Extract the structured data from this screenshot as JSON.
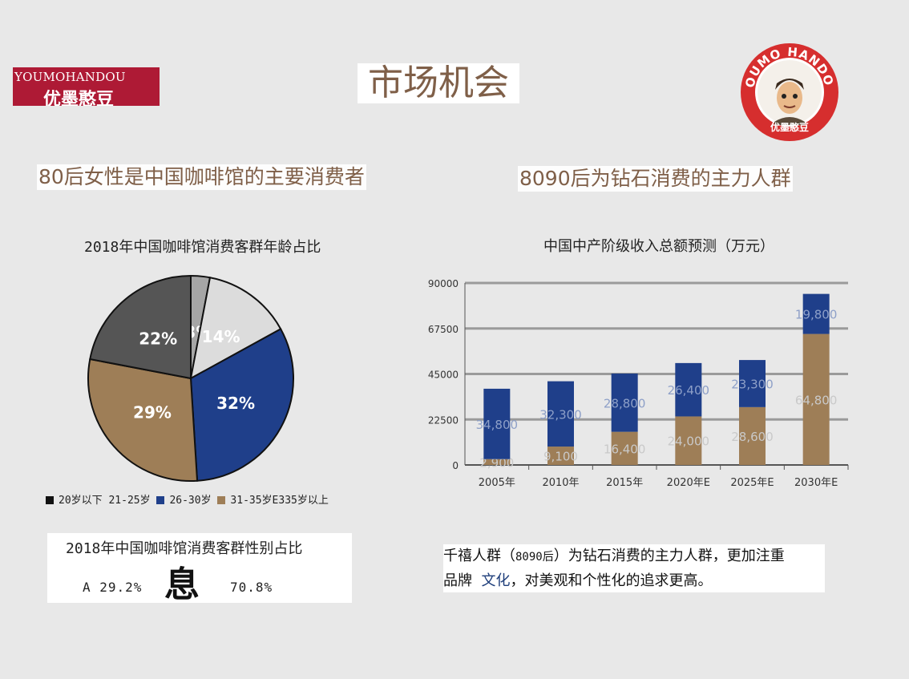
{
  "brand": {
    "en": "YOUMOHANDOU",
    "cn": "优墨憨豆"
  },
  "page_title": "市场机会",
  "logo": {
    "ring_text": "YOUMO HANDOU",
    "bottom_text": "优墨憨豆",
    "icon": "cartoon-face-logo",
    "color": "#d62e2e"
  },
  "headings": {
    "left": "80后女性是中国咖啡馆的主要消费者",
    "right": "8090后为钻石消费的主力人群"
  },
  "pie": {
    "legend_text": "20岁以下 21-25岁",
    "legend_text_2": "26-30岁",
    "legend_text_3": "31-35岁E335岁以上"
  },
  "gender": {
    "title": "2018年中国咖啡馆消费客群性别占比",
    "left": "A 29.2%",
    "mid": "息",
    "right": "70.8%"
  },
  "note": {
    "l1_a": "千禧人群（",
    "l1_b": "8090后",
    "l1_c": "）为钻石消费的主力人群，更加注重",
    "l2_a": "品牌",
    "l2_b": "文化",
    "l2_c": "，对美观和个性化的追求更高。"
  },
  "colors": {
    "brand_red": "#ae1a35",
    "title_brown": "#7f5f48",
    "navy": "#1f3f8a",
    "tan": "#9e7e57",
    "dark_gray": "#555555",
    "light_gray": "#d9d9d9",
    "mid_gray": "#a6a6a6"
  },
  "chart_data": [
    {
      "type": "pie",
      "title": "2018年中国咖啡馆消费客群年龄占比",
      "labels": [
        "20岁以下",
        "21-25岁",
        "26-30岁",
        "31-35岁",
        "35岁以上"
      ],
      "values": [
        3,
        14,
        32,
        29,
        22
      ],
      "data_labels": [
        "3%",
        "14%",
        "32%",
        "29%",
        "22%"
      ],
      "colors": [
        "#a6a6a6",
        "#dcdcdc",
        "#1f3f8a",
        "#9e7e57",
        "#555555"
      ]
    },
    {
      "type": "bar",
      "stacked": true,
      "title": "中国中产阶级收入总额预测（万元）",
      "categories": [
        "2005年",
        "2010年",
        "2015年",
        "2020年E",
        "2025年E",
        "2030年E"
      ],
      "series": [
        {
          "values": [
            2900,
            9100,
            16400,
            24000,
            28600,
            64800
          ],
          "labels": [
            "2,900",
            "9,100",
            "16,400",
            "24,000",
            "28,600",
            "64,800"
          ],
          "color": "#9e7e57"
        },
        {
          "values": [
            34800,
            32300,
            28800,
            26400,
            23300,
            19800
          ],
          "labels": [
            "34,800",
            "32,300",
            "28,800",
            "26,400",
            "23,300",
            "19,800"
          ],
          "color": "#1f3f8a"
        }
      ],
      "ylim": [
        0,
        90000
      ],
      "yticks": [
        "0",
        "22500",
        "45000",
        "67500",
        "90000"
      ],
      "ytick_values": [
        0,
        22500,
        45000,
        67500,
        90000
      ],
      "grid": true
    }
  ]
}
